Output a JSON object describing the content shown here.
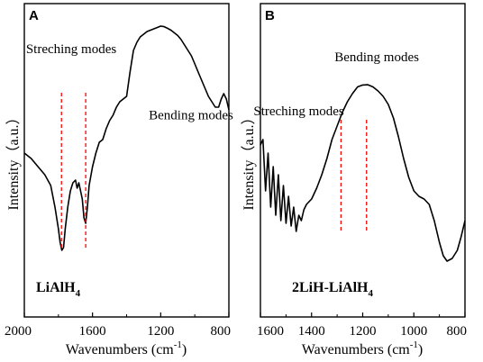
{
  "chart_data": [
    {
      "panel": "A",
      "type": "line",
      "xlabel_main": "Wavenumbers (cm",
      "xlabel_sup": "-1",
      "xlabel_end": ")",
      "ylabel": "Intensity（a.u.）",
      "xlim": [
        2000,
        800
      ],
      "x_reversed": true,
      "xticks": [
        2000,
        1600,
        1200,
        800
      ],
      "sample_main": "LiAlH",
      "sample_sub": "4",
      "annotations": [
        {
          "text": "Streching modes",
          "x": 1725,
          "y": 0.87
        },
        {
          "text": "Bending modes",
          "x": 1022,
          "y": 0.625
        }
      ],
      "reference_lines": [
        1782,
        1640
      ],
      "line_color": "#000000",
      "reference_color": "#ff0000",
      "series": [
        {
          "x": [
            2000,
            1960,
            1920,
            1880,
            1845,
            1820,
            1800,
            1790,
            1780,
            1770,
            1760,
            1745,
            1730,
            1715,
            1700,
            1690,
            1680,
            1670,
            1660,
            1650,
            1640,
            1630,
            1620,
            1600,
            1580,
            1560,
            1540,
            1520,
            1500,
            1480,
            1460,
            1440,
            1420,
            1400,
            1380,
            1360,
            1340,
            1320,
            1300,
            1280,
            1260,
            1240,
            1220,
            1200,
            1180,
            1160,
            1140,
            1120,
            1100,
            1080,
            1060,
            1040,
            1020,
            1000,
            980,
            960,
            940,
            920,
            900,
            880,
            860,
            845,
            830,
            815,
            800
          ],
          "y": [
            0.5,
            0.48,
            0.45,
            0.42,
            0.38,
            0.3,
            0.22,
            0.17,
            0.14,
            0.15,
            0.22,
            0.3,
            0.36,
            0.39,
            0.4,
            0.37,
            0.39,
            0.36,
            0.33,
            0.26,
            0.24,
            0.3,
            0.38,
            0.45,
            0.5,
            0.54,
            0.55,
            0.59,
            0.62,
            0.64,
            0.67,
            0.69,
            0.7,
            0.71,
            0.8,
            0.88,
            0.91,
            0.93,
            0.94,
            0.95,
            0.955,
            0.96,
            0.965,
            0.97,
            0.968,
            0.962,
            0.955,
            0.945,
            0.935,
            0.92,
            0.9,
            0.88,
            0.86,
            0.83,
            0.8,
            0.77,
            0.74,
            0.71,
            0.69,
            0.67,
            0.67,
            0.7,
            0.72,
            0.7,
            0.66
          ]
        }
      ]
    },
    {
      "panel": "B",
      "type": "line",
      "xlabel_main": "Wavenumbers (cm",
      "xlabel_sup": "-1",
      "xlabel_end": ")",
      "ylabel": "Intensity（a.u.）",
      "xlim": [
        1600,
        800
      ],
      "x_reversed": true,
      "xticks": [
        1600,
        1400,
        1200,
        1000,
        800
      ],
      "sample_main": "2LiH-LiAlH",
      "sample_sub": "4",
      "annotations": [
        {
          "text": "Streching modes",
          "x": 1450,
          "y": 0.64
        },
        {
          "text": "Bending modes",
          "x": 1145,
          "y": 0.84
        }
      ],
      "reference_lines": [
        1285,
        1185
      ],
      "line_color": "#000000",
      "reference_color": "#ff0000",
      "series": [
        {
          "x": [
            1600,
            1590,
            1580,
            1570,
            1560,
            1550,
            1540,
            1530,
            1520,
            1510,
            1500,
            1490,
            1480,
            1470,
            1460,
            1450,
            1440,
            1430,
            1420,
            1400,
            1380,
            1360,
            1340,
            1320,
            1300,
            1280,
            1260,
            1240,
            1220,
            1200,
            1180,
            1160,
            1140,
            1120,
            1100,
            1080,
            1060,
            1040,
            1020,
            1000,
            980,
            960,
            940,
            920,
            900,
            885,
            870,
            850,
            830,
            815,
            800
          ],
          "y": [
            0.53,
            0.55,
            0.36,
            0.5,
            0.3,
            0.45,
            0.27,
            0.42,
            0.25,
            0.38,
            0.24,
            0.34,
            0.23,
            0.3,
            0.21,
            0.27,
            0.25,
            0.29,
            0.31,
            0.33,
            0.37,
            0.42,
            0.48,
            0.55,
            0.6,
            0.65,
            0.69,
            0.72,
            0.745,
            0.752,
            0.753,
            0.745,
            0.73,
            0.71,
            0.68,
            0.63,
            0.56,
            0.48,
            0.41,
            0.36,
            0.34,
            0.33,
            0.31,
            0.25,
            0.17,
            0.12,
            0.1,
            0.11,
            0.14,
            0.19,
            0.25
          ]
        }
      ]
    }
  ]
}
